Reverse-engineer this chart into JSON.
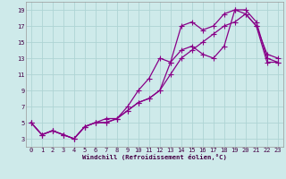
{
  "xlabel": "Windchill (Refroidissement éolien,°C)",
  "bg_color": "#ceeaea",
  "grid_color": "#aed4d4",
  "line_color": "#880088",
  "line1_x": [
    0,
    1,
    2,
    3,
    4,
    5,
    6,
    7,
    8,
    9,
    10,
    11,
    12,
    13,
    14,
    15,
    16,
    17,
    18,
    19,
    20,
    21,
    22,
    23
  ],
  "line1_y": [
    5,
    3.5,
    4,
    3.5,
    3,
    4.5,
    5,
    5,
    5.5,
    6.5,
    7.5,
    8,
    9,
    12.5,
    17,
    17.5,
    16.5,
    17,
    18.5,
    19,
    19,
    17.5,
    13,
    12.5
  ],
  "line2_x": [
    0,
    1,
    2,
    3,
    4,
    5,
    6,
    7,
    8,
    9,
    10,
    11,
    12,
    13,
    14,
    15,
    16,
    17,
    18,
    19,
    20,
    21,
    22,
    23
  ],
  "line2_y": [
    5,
    3.5,
    4,
    3.5,
    3,
    4.5,
    5,
    5.5,
    5.5,
    7,
    9,
    10.5,
    13,
    12.5,
    14,
    14.5,
    13.5,
    13,
    14.5,
    19,
    18.5,
    17,
    13.5,
    13
  ],
  "line3_x": [
    0,
    1,
    2,
    3,
    4,
    5,
    6,
    7,
    8,
    9,
    10,
    11,
    12,
    13,
    14,
    15,
    16,
    17,
    18,
    19,
    20,
    21,
    22,
    23
  ],
  "line3_y": [
    5,
    3.5,
    4,
    3.5,
    3,
    4.5,
    5,
    5,
    5.5,
    6.5,
    7.5,
    8,
    9,
    11,
    13,
    14,
    15,
    16,
    17,
    17.5,
    18.5,
    17,
    12.5,
    12.5
  ],
  "xlim_min": -0.5,
  "xlim_max": 23.5,
  "ylim_min": 2,
  "ylim_max": 20,
  "xticks": [
    0,
    1,
    2,
    3,
    4,
    5,
    6,
    7,
    8,
    9,
    10,
    11,
    12,
    13,
    14,
    15,
    16,
    17,
    18,
    19,
    20,
    21,
    22,
    23
  ],
  "yticks": [
    3,
    5,
    7,
    9,
    11,
    13,
    15,
    17,
    19
  ],
  "tick_fontsize": 5,
  "xlabel_fontsize": 5.2,
  "marker_size": 2.0,
  "linewidth": 0.9
}
